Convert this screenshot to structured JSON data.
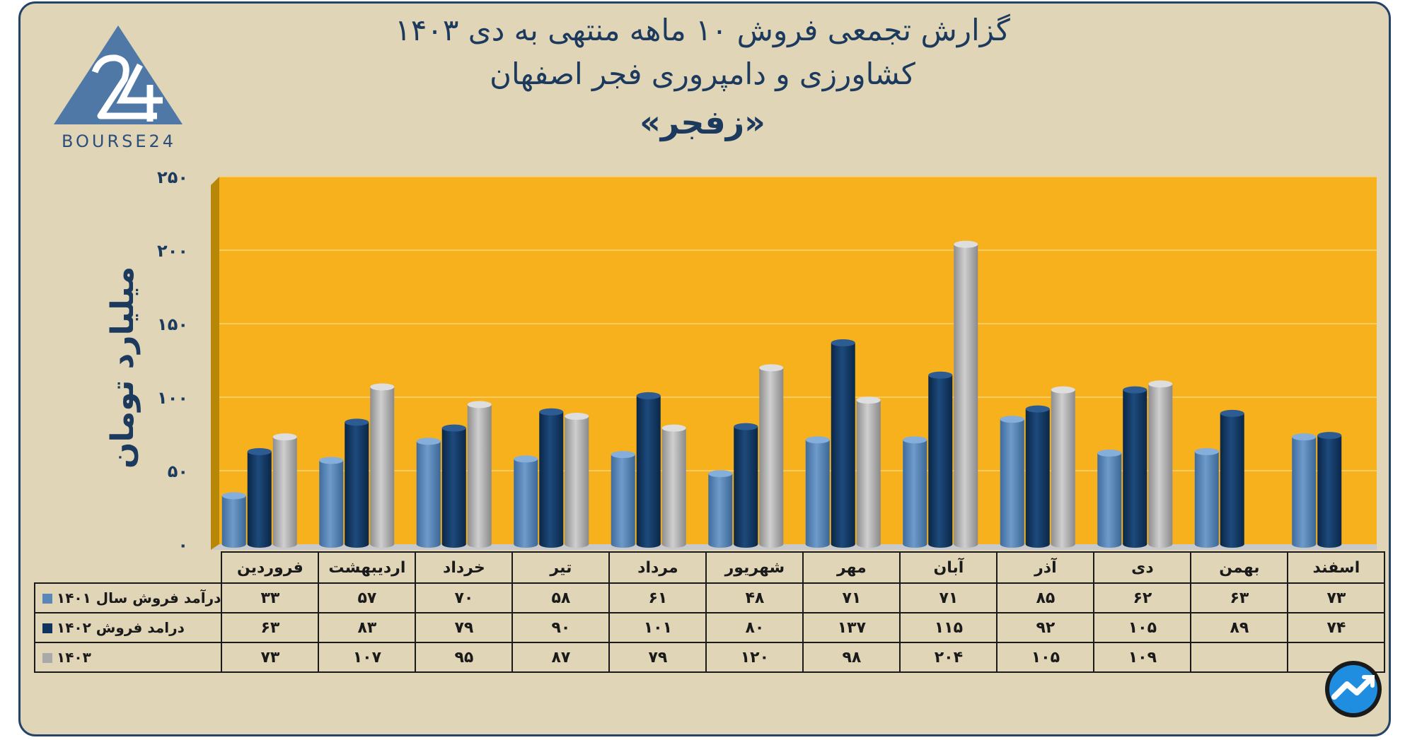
{
  "title": {
    "line1": "گزارش تجمعی فروش ۱۰ ماهه منتهی به دی ۱۴۰۳",
    "line2": "کشاورزی و دامپروری فجر اصفهان",
    "line3": "«زفجر»"
  },
  "logo": {
    "text": "BOURSE24",
    "mark": "24",
    "icon": "triangle-24-logo-icon"
  },
  "badge": {
    "icon": "trend-arrow-badge-icon"
  },
  "colors": {
    "plot_bg": "#f7b11d",
    "series1": "#5b87b8",
    "series2": "#0f355e",
    "series3": "#a9a9a9",
    "frame": "#e1d5b8"
  },
  "chart_data": {
    "type": "bar",
    "ylabel": "میلیارد تومان",
    "ylim": [
      0,
      250
    ],
    "yticks": [
      0,
      50,
      100,
      150,
      200,
      250
    ],
    "ytick_labels": [
      "۰",
      "۵۰",
      "۱۰۰",
      "۱۵۰",
      "۲۰۰",
      "۲۵۰"
    ],
    "grid": true,
    "legend": "table-left",
    "categories": [
      "فروردین",
      "اردیبهشت",
      "خرداد",
      "تیر",
      "مرداد",
      "شهریور",
      "مهر",
      "آبان",
      "آذر",
      "دی",
      "بهمن",
      "اسفند"
    ],
    "series": [
      {
        "name": "درآمد فروش سال ۱۴۰۱",
        "values": [
          33,
          57,
          70,
          58,
          61,
          48,
          71,
          71,
          85,
          62,
          63,
          73
        ],
        "labels": [
          "۳۳",
          "۵۷",
          "۷۰",
          "۵۸",
          "۶۱",
          "۴۸",
          "۷۱",
          "۷۱",
          "۸۵",
          "۶۲",
          "۶۳",
          "۷۳"
        ],
        "color": "#5b87b8"
      },
      {
        "name": "درامد فروش ۱۴۰۲",
        "values": [
          63,
          83,
          79,
          90,
          101,
          80,
          137,
          115,
          92,
          105,
          89,
          74
        ],
        "labels": [
          "۶۳",
          "۸۳",
          "۷۹",
          "۹۰",
          "۱۰۱",
          "۸۰",
          "۱۳۷",
          "۱۱۵",
          "۹۲",
          "۱۰۵",
          "۸۹",
          "۷۴"
        ],
        "color": "#0f355e"
      },
      {
        "name": "۱۴۰۳",
        "values": [
          73,
          107,
          95,
          87,
          79,
          120,
          98,
          204,
          105,
          109,
          null,
          null
        ],
        "labels": [
          "۷۳",
          "۱۰۷",
          "۹۵",
          "۸۷",
          "۷۹",
          "۱۲۰",
          "۹۸",
          "۲۰۴",
          "۱۰۵",
          "۱۰۹",
          "",
          ""
        ],
        "color": "#a9a9a9"
      }
    ]
  }
}
